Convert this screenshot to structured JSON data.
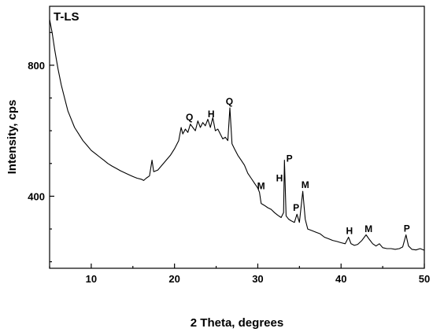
{
  "chart_data": {
    "type": "line",
    "panel_label": "T-LS",
    "xlabel": "2 Theta, degrees",
    "ylabel": "Intensity, cps",
    "xlim": [
      5,
      50
    ],
    "ylim": [
      180,
      980
    ],
    "x_ticks": [
      10,
      20,
      30,
      40,
      50
    ],
    "y_ticks": [
      400,
      800
    ],
    "grid": false,
    "series": [
      {
        "color": "#000000",
        "points": [
          [
            5.0,
            940
          ],
          [
            5.3,
            900
          ],
          [
            5.6,
            850
          ],
          [
            6.0,
            790
          ],
          [
            6.4,
            740
          ],
          [
            6.8,
            700
          ],
          [
            7.2,
            660
          ],
          [
            7.6,
            635
          ],
          [
            8.0,
            610
          ],
          [
            8.5,
            590
          ],
          [
            9.0,
            570
          ],
          [
            9.5,
            555
          ],
          [
            10.0,
            540
          ],
          [
            10.5,
            530
          ],
          [
            11.0,
            520
          ],
          [
            11.5,
            510
          ],
          [
            12.0,
            500
          ],
          [
            12.5,
            492
          ],
          [
            13.0,
            485
          ],
          [
            13.5,
            478
          ],
          [
            14.0,
            472
          ],
          [
            14.5,
            466
          ],
          [
            15.0,
            460
          ],
          [
            15.5,
            455
          ],
          [
            16.0,
            452
          ],
          [
            16.3,
            448
          ],
          [
            16.6,
            455
          ],
          [
            17.0,
            462
          ],
          [
            17.3,
            510
          ],
          [
            17.5,
            475
          ],
          [
            18.0,
            480
          ],
          [
            18.5,
            495
          ],
          [
            19.0,
            510
          ],
          [
            19.5,
            525
          ],
          [
            20.0,
            545
          ],
          [
            20.5,
            570
          ],
          [
            20.8,
            610
          ],
          [
            21.0,
            590
          ],
          [
            21.3,
            605
          ],
          [
            21.6,
            595
          ],
          [
            21.9,
            620
          ],
          [
            22.2,
            610
          ],
          [
            22.5,
            600
          ],
          [
            22.8,
            630
          ],
          [
            23.1,
            610
          ],
          [
            23.4,
            625
          ],
          [
            23.7,
            615
          ],
          [
            24.0,
            635
          ],
          [
            24.3,
            610
          ],
          [
            24.6,
            640
          ],
          [
            24.9,
            600
          ],
          [
            25.2,
            605
          ],
          [
            25.5,
            590
          ],
          [
            25.8,
            575
          ],
          [
            26.1,
            580
          ],
          [
            26.4,
            570
          ],
          [
            26.65,
            670
          ],
          [
            26.9,
            560
          ],
          [
            27.2,
            545
          ],
          [
            27.6,
            525
          ],
          [
            28.0,
            510
          ],
          [
            28.4,
            495
          ],
          [
            28.8,
            470
          ],
          [
            29.2,
            455
          ],
          [
            29.6,
            440
          ],
          [
            30.0,
            425
          ],
          [
            30.2,
            412
          ],
          [
            30.4,
            378
          ],
          [
            30.8,
            372
          ],
          [
            31.2,
            365
          ],
          [
            31.6,
            360
          ],
          [
            32.0,
            350
          ],
          [
            32.4,
            342
          ],
          [
            32.8,
            335
          ],
          [
            33.1,
            350
          ],
          [
            33.2,
            510
          ],
          [
            33.4,
            340
          ],
          [
            33.7,
            330
          ],
          [
            34.0,
            325
          ],
          [
            34.4,
            320
          ],
          [
            34.7,
            345
          ],
          [
            35.0,
            320
          ],
          [
            35.4,
            415
          ],
          [
            35.7,
            330
          ],
          [
            36.0,
            300
          ],
          [
            36.5,
            295
          ],
          [
            37.0,
            290
          ],
          [
            37.5,
            285
          ],
          [
            38.0,
            275
          ],
          [
            38.5,
            270
          ],
          [
            39.0,
            265
          ],
          [
            39.5,
            262
          ],
          [
            40.0,
            258
          ],
          [
            40.5,
            255
          ],
          [
            40.9,
            275
          ],
          [
            41.2,
            255
          ],
          [
            41.6,
            250
          ],
          [
            42.0,
            253
          ],
          [
            42.5,
            265
          ],
          [
            43.0,
            282
          ],
          [
            43.4,
            268
          ],
          [
            43.8,
            255
          ],
          [
            44.2,
            248
          ],
          [
            44.6,
            255
          ],
          [
            45.0,
            243
          ],
          [
            45.5,
            240
          ],
          [
            46.0,
            240
          ],
          [
            46.5,
            238
          ],
          [
            47.0,
            240
          ],
          [
            47.4,
            245
          ],
          [
            47.8,
            282
          ],
          [
            48.1,
            248
          ],
          [
            48.5,
            238
          ],
          [
            49.0,
            236
          ],
          [
            49.5,
            240
          ],
          [
            50.0,
            235
          ]
        ]
      }
    ],
    "annotations": [
      {
        "text": "Q",
        "x": 21.8,
        "y": 632
      },
      {
        "text": "H",
        "x": 24.4,
        "y": 641
      },
      {
        "text": "Q",
        "x": 26.6,
        "y": 680
      },
      {
        "text": "M",
        "x": 30.4,
        "y": 422
      },
      {
        "text": "H",
        "x": 32.6,
        "y": 445
      },
      {
        "text": "P",
        "x": 33.8,
        "y": 505
      },
      {
        "text": "P",
        "x": 34.6,
        "y": 355
      },
      {
        "text": "M",
        "x": 35.7,
        "y": 425
      },
      {
        "text": "H",
        "x": 41.0,
        "y": 285
      },
      {
        "text": "M",
        "x": 43.3,
        "y": 290
      },
      {
        "text": "P",
        "x": 47.9,
        "y": 292
      }
    ]
  }
}
